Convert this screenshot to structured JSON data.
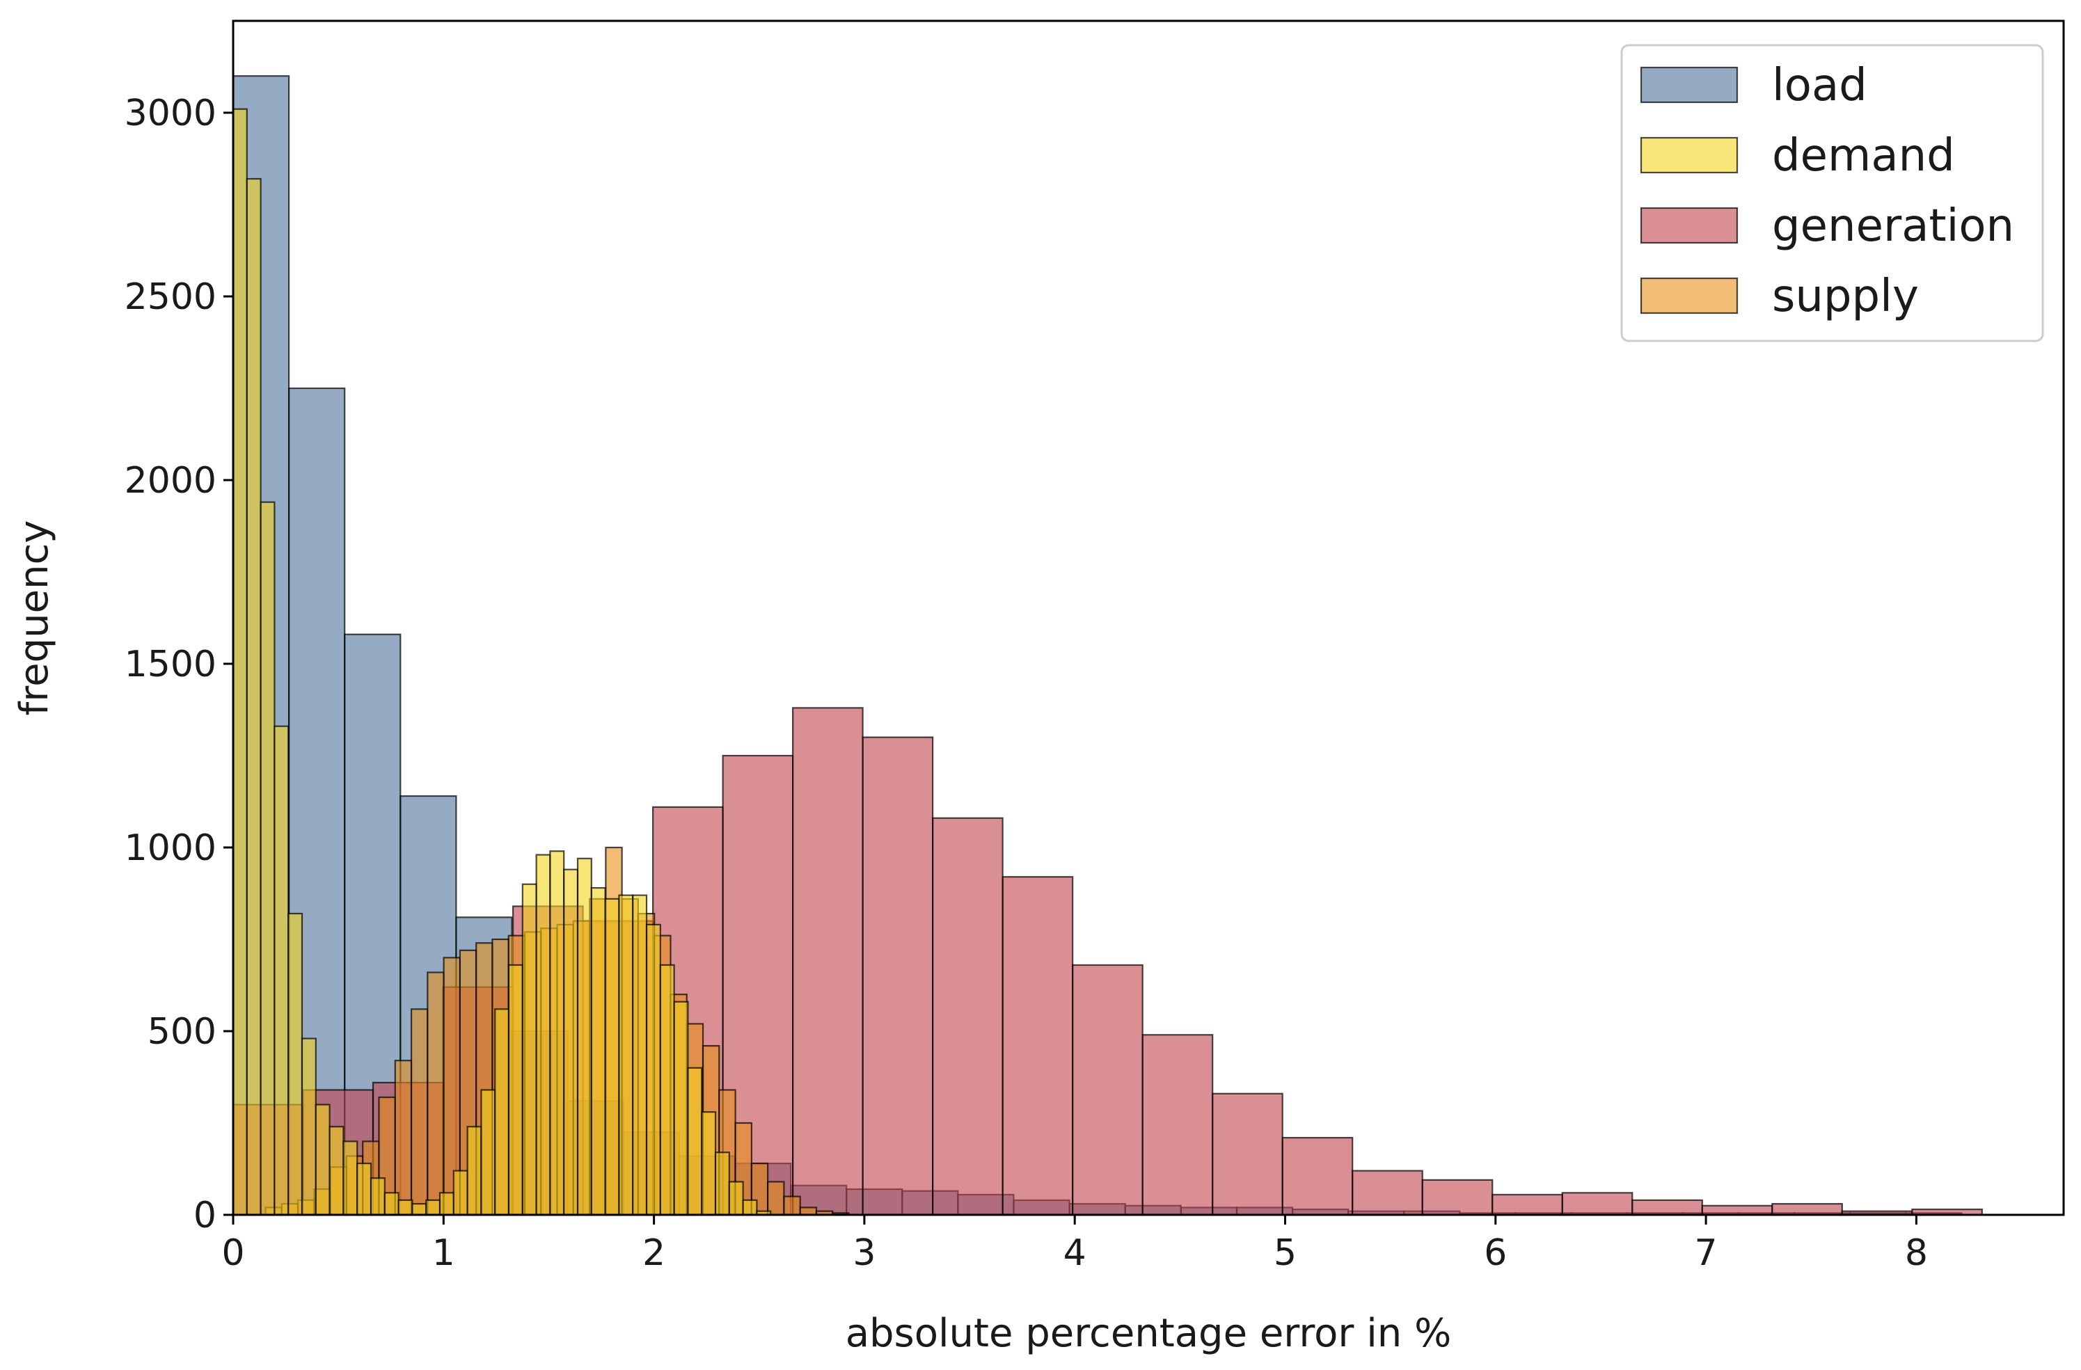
{
  "chart_data": {
    "type": "bar",
    "subtype": "overlaid-histogram",
    "title": "",
    "xlabel": "absolute percentage error in %",
    "ylabel": "frequency",
    "xlim": [
      0,
      8.7
    ],
    "ylim": [
      0,
      3250
    ],
    "xticks": [
      0,
      1,
      2,
      3,
      4,
      5,
      6,
      7,
      8
    ],
    "yticks": [
      0,
      500,
      1000,
      1500,
      2000,
      2500,
      3000
    ],
    "grid": false,
    "legend_position": "top-right",
    "series": [
      {
        "name": "load",
        "color": "#4f739d",
        "bin_width": 0.265,
        "bin_start": 0,
        "values": [
          3100,
          2250,
          1580,
          1140,
          810,
          500,
          310,
          225,
          160,
          140,
          80,
          70,
          65,
          55,
          40,
          30,
          25,
          20,
          20,
          15,
          10,
          10,
          5,
          5,
          5,
          5,
          5,
          5,
          5,
          5,
          5
        ]
      },
      {
        "name": "generation",
        "color": "#c1454e",
        "bin_width": 0.3325,
        "bin_start": 0,
        "values": [
          300,
          340,
          360,
          620,
          840,
          800,
          1110,
          1250,
          1380,
          1300,
          1080,
          920,
          680,
          490,
          330,
          210,
          120,
          95,
          55,
          60,
          40,
          25,
          30,
          10,
          15
        ]
      },
      {
        "name": "supply",
        "color": "#e6901a",
        "bin_width": 0.077,
        "bin_start": 0,
        "values": [
          0,
          0,
          20,
          30,
          40,
          70,
          130,
          160,
          200,
          320,
          420,
          560,
          660,
          700,
          720,
          740,
          750,
          760,
          770,
          780,
          790,
          800,
          860,
          1000,
          860,
          820,
          760,
          600,
          520,
          460,
          340,
          250,
          140,
          90,
          50,
          20,
          10,
          5
        ]
      },
      {
        "name": "demand",
        "color": "#f4d41e",
        "bin_width": 0.0655,
        "bin_start": 0,
        "values": [
          3010,
          2820,
          1940,
          1330,
          820,
          480,
          300,
          240,
          200,
          140,
          100,
          60,
          40,
          30,
          40,
          60,
          120,
          240,
          340,
          560,
          680,
          900,
          980,
          990,
          940,
          970,
          890,
          860,
          870,
          870,
          790,
          680,
          580,
          400,
          280,
          170,
          90,
          40,
          10
        ]
      }
    ]
  }
}
